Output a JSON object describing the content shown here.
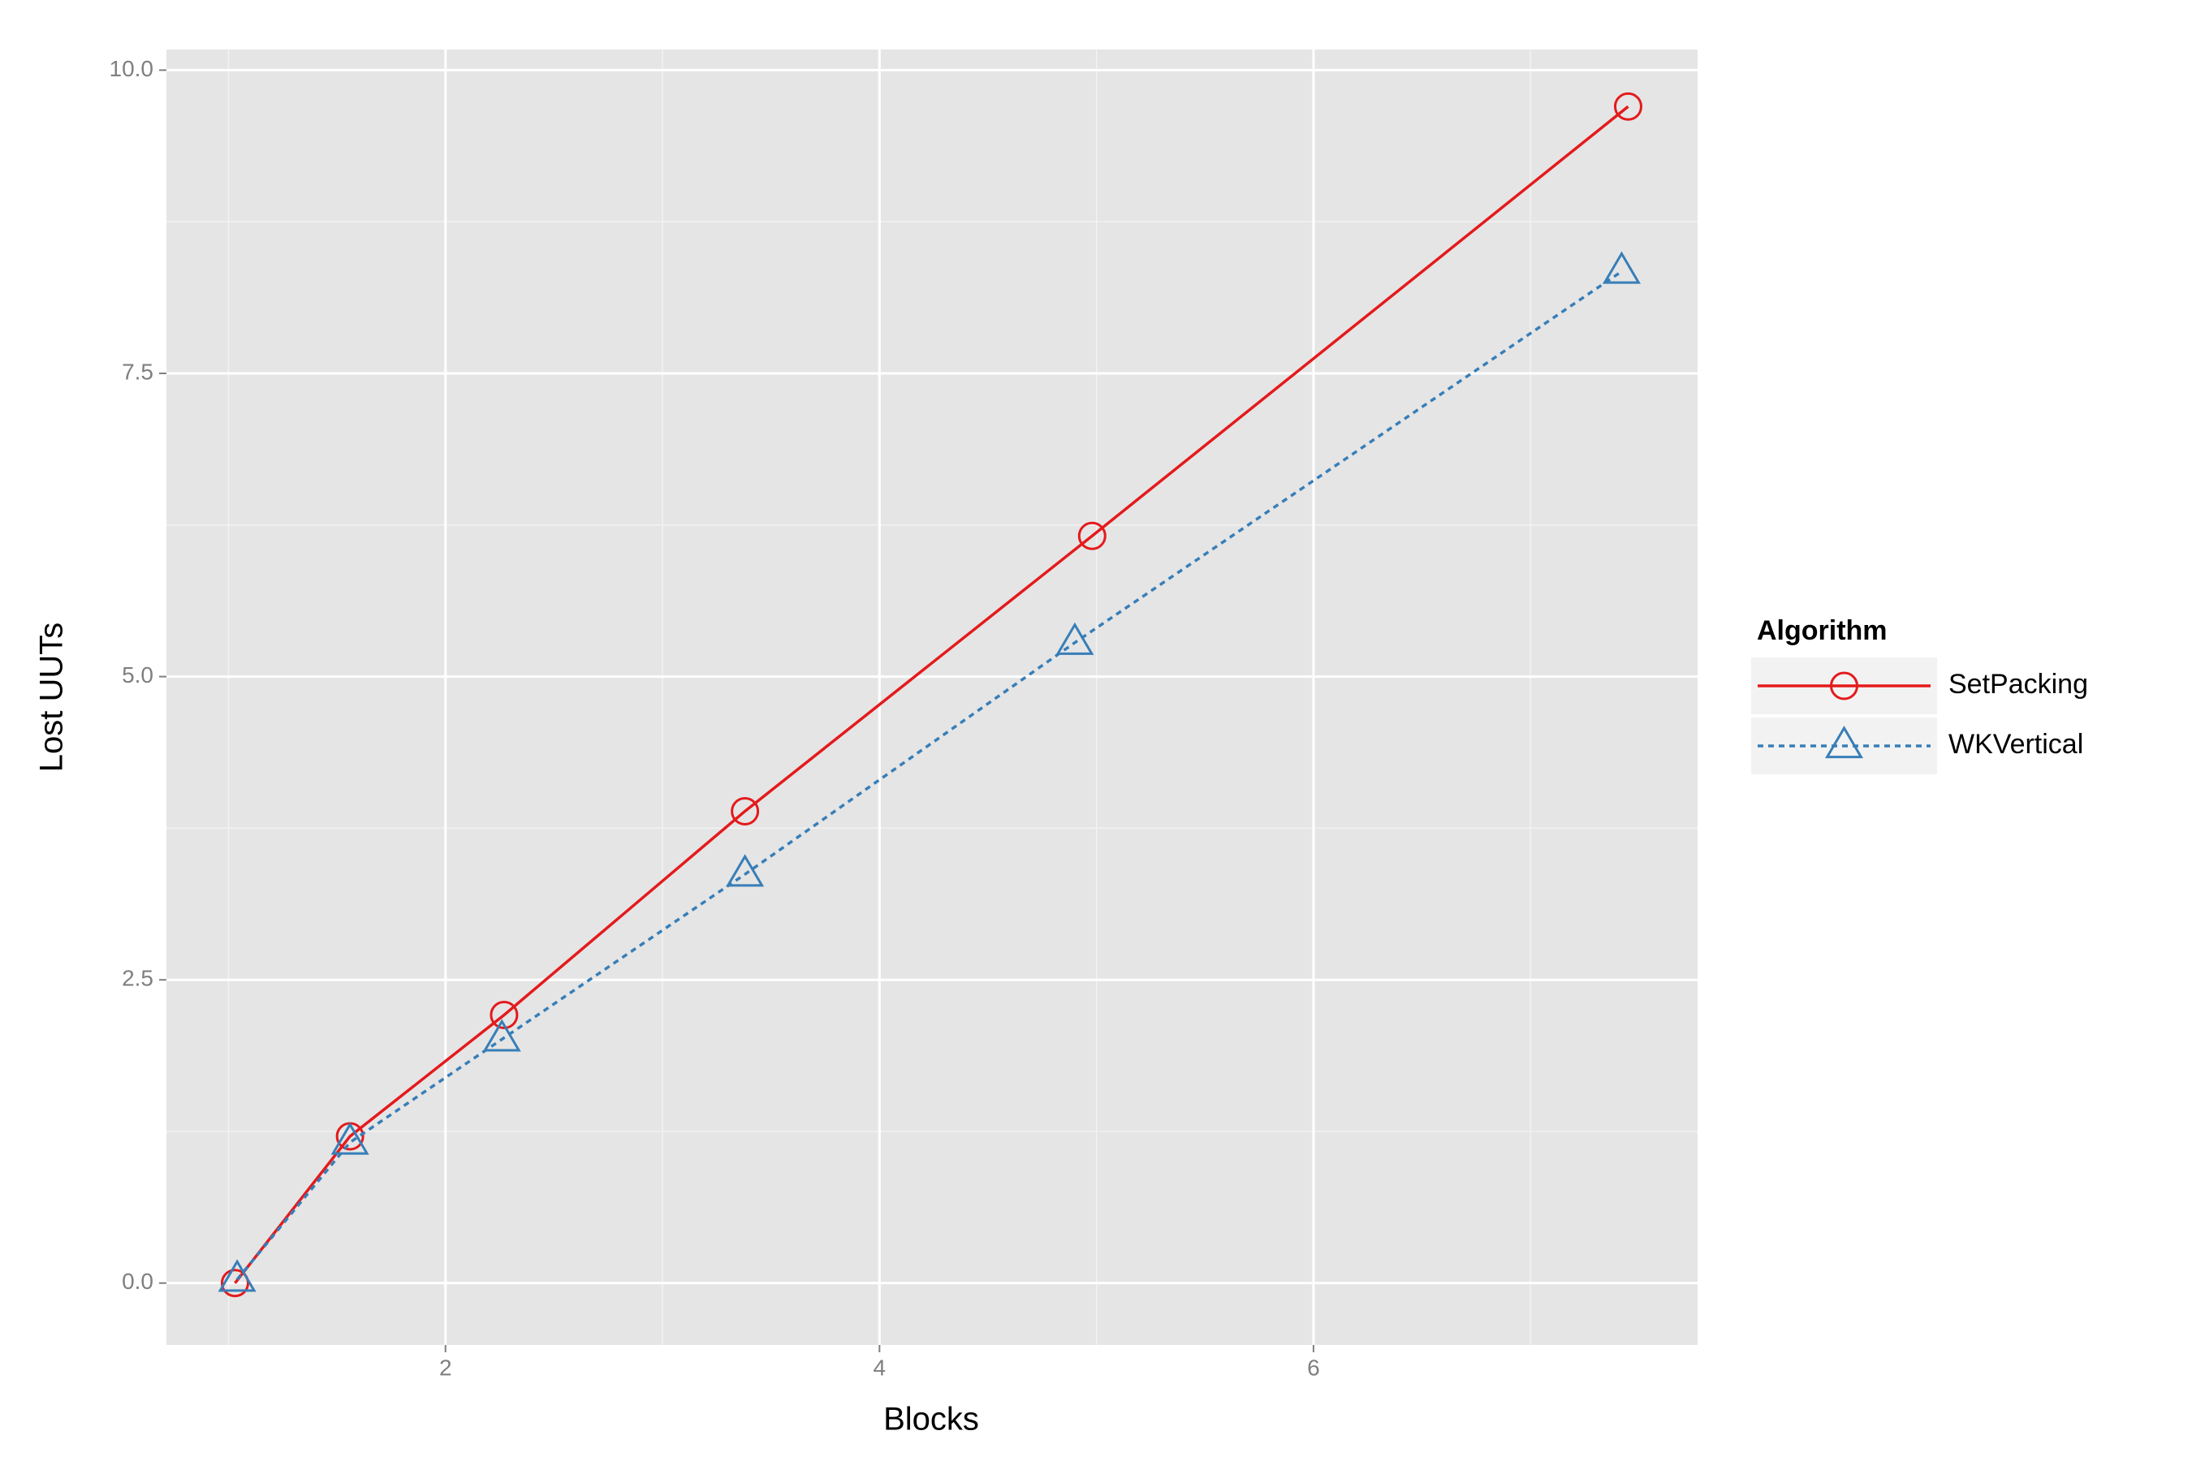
{
  "chart_data": {
    "type": "line",
    "x_label": "Blocks",
    "y_label": "Lost UUTs",
    "legend_title": "Algorithm",
    "legend_position": "right",
    "grid": true,
    "xlim": [
      0.714,
      7.77
    ],
    "ylim": [
      -0.51,
      10.17
    ],
    "xticks": [
      2,
      4,
      6
    ],
    "yticks": [
      {
        "value": 0,
        "label": "0.0"
      },
      2.5,
      {
        "value": 5,
        "label": "5.0"
      },
      7.5,
      {
        "value": 10,
        "label": "10.0"
      }
    ],
    "minor_xticks": [
      1,
      3,
      5,
      7
    ],
    "minor_yticks": [
      1.25,
      3.75,
      6.25,
      8.75
    ],
    "series": [
      {
        "name": "SetPacking",
        "color": "#e41a1c",
        "marker": "circle",
        "dash": "solid",
        "x": [
          1.03,
          1.56,
          2.27,
          3.38,
          4.98,
          7.45
        ],
        "values": [
          0,
          1.21,
          2.21,
          3.89,
          6.16,
          9.7
        ]
      },
      {
        "name": "WKVertical",
        "color": "#377eb8",
        "marker": "triangle",
        "dash": "dotted",
        "x": [
          1.04,
          1.56,
          2.26,
          3.38,
          4.9,
          7.42
        ],
        "values": [
          0.03,
          1.16,
          2.01,
          3.37,
          5.28,
          8.34
        ]
      }
    ]
  }
}
